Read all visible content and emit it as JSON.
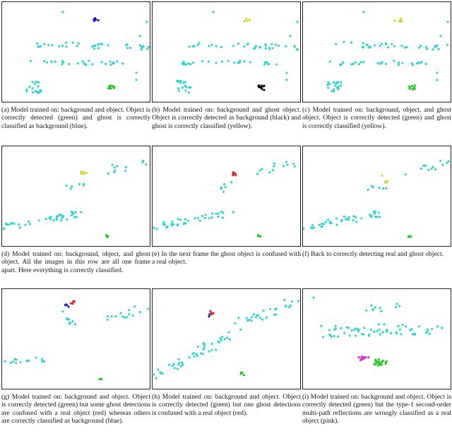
{
  "figure": {
    "panels": [
      {
        "id": "a",
        "caption": "(a) Model trained on: background and object. Object is correctly detected (green) and ghost is correctly classified as background (blue)."
      },
      {
        "id": "b",
        "caption": "(b) Model trained on: background and ghost object. Object is correctly detected as background (black) and ghost is correctly classified (yellow)."
      },
      {
        "id": "c",
        "caption": "(c) Model trained on: background, object, and ghost object. Object is correctly detected (green) and ghost is correctly classified (yellow)."
      },
      {
        "id": "d",
        "caption": "(d) Model trained on: background, object, and ghost object. All the images in this row are all one frame apart. Here everything is correctly classified."
      },
      {
        "id": "e",
        "caption": "(e) In the next frame the ghost object is confused with a real object."
      },
      {
        "id": "f",
        "caption": "(f) Back to correctly detecting real and ghost object."
      },
      {
        "id": "g",
        "caption": "(g) Model trained on: background and object. Object is correctly detected (green) but some ghost detections are confused with a real object (red) whereas others are correctly classified as background (blue)."
      },
      {
        "id": "h",
        "caption": "(h) Model trained on: background and object. Object is correctly detected (green) but one ghost detections is confused with a real object (red)."
      },
      {
        "id": "i",
        "caption": "(i) Model trained on: background and object. Object is correctly detected (green) but the type-1 second-order multi-path reflections are wrongly classified as a real object (pink)."
      }
    ]
  },
  "colors": {
    "background_points": "#2dd4d4",
    "object_green": "#22cc22",
    "ghost_yellow": "#d4d42a",
    "ghost_blue": "#1a1acc",
    "black": "#111111",
    "red": "#dd2222",
    "pink": "#dd22dd",
    "frame": "#222222"
  }
}
